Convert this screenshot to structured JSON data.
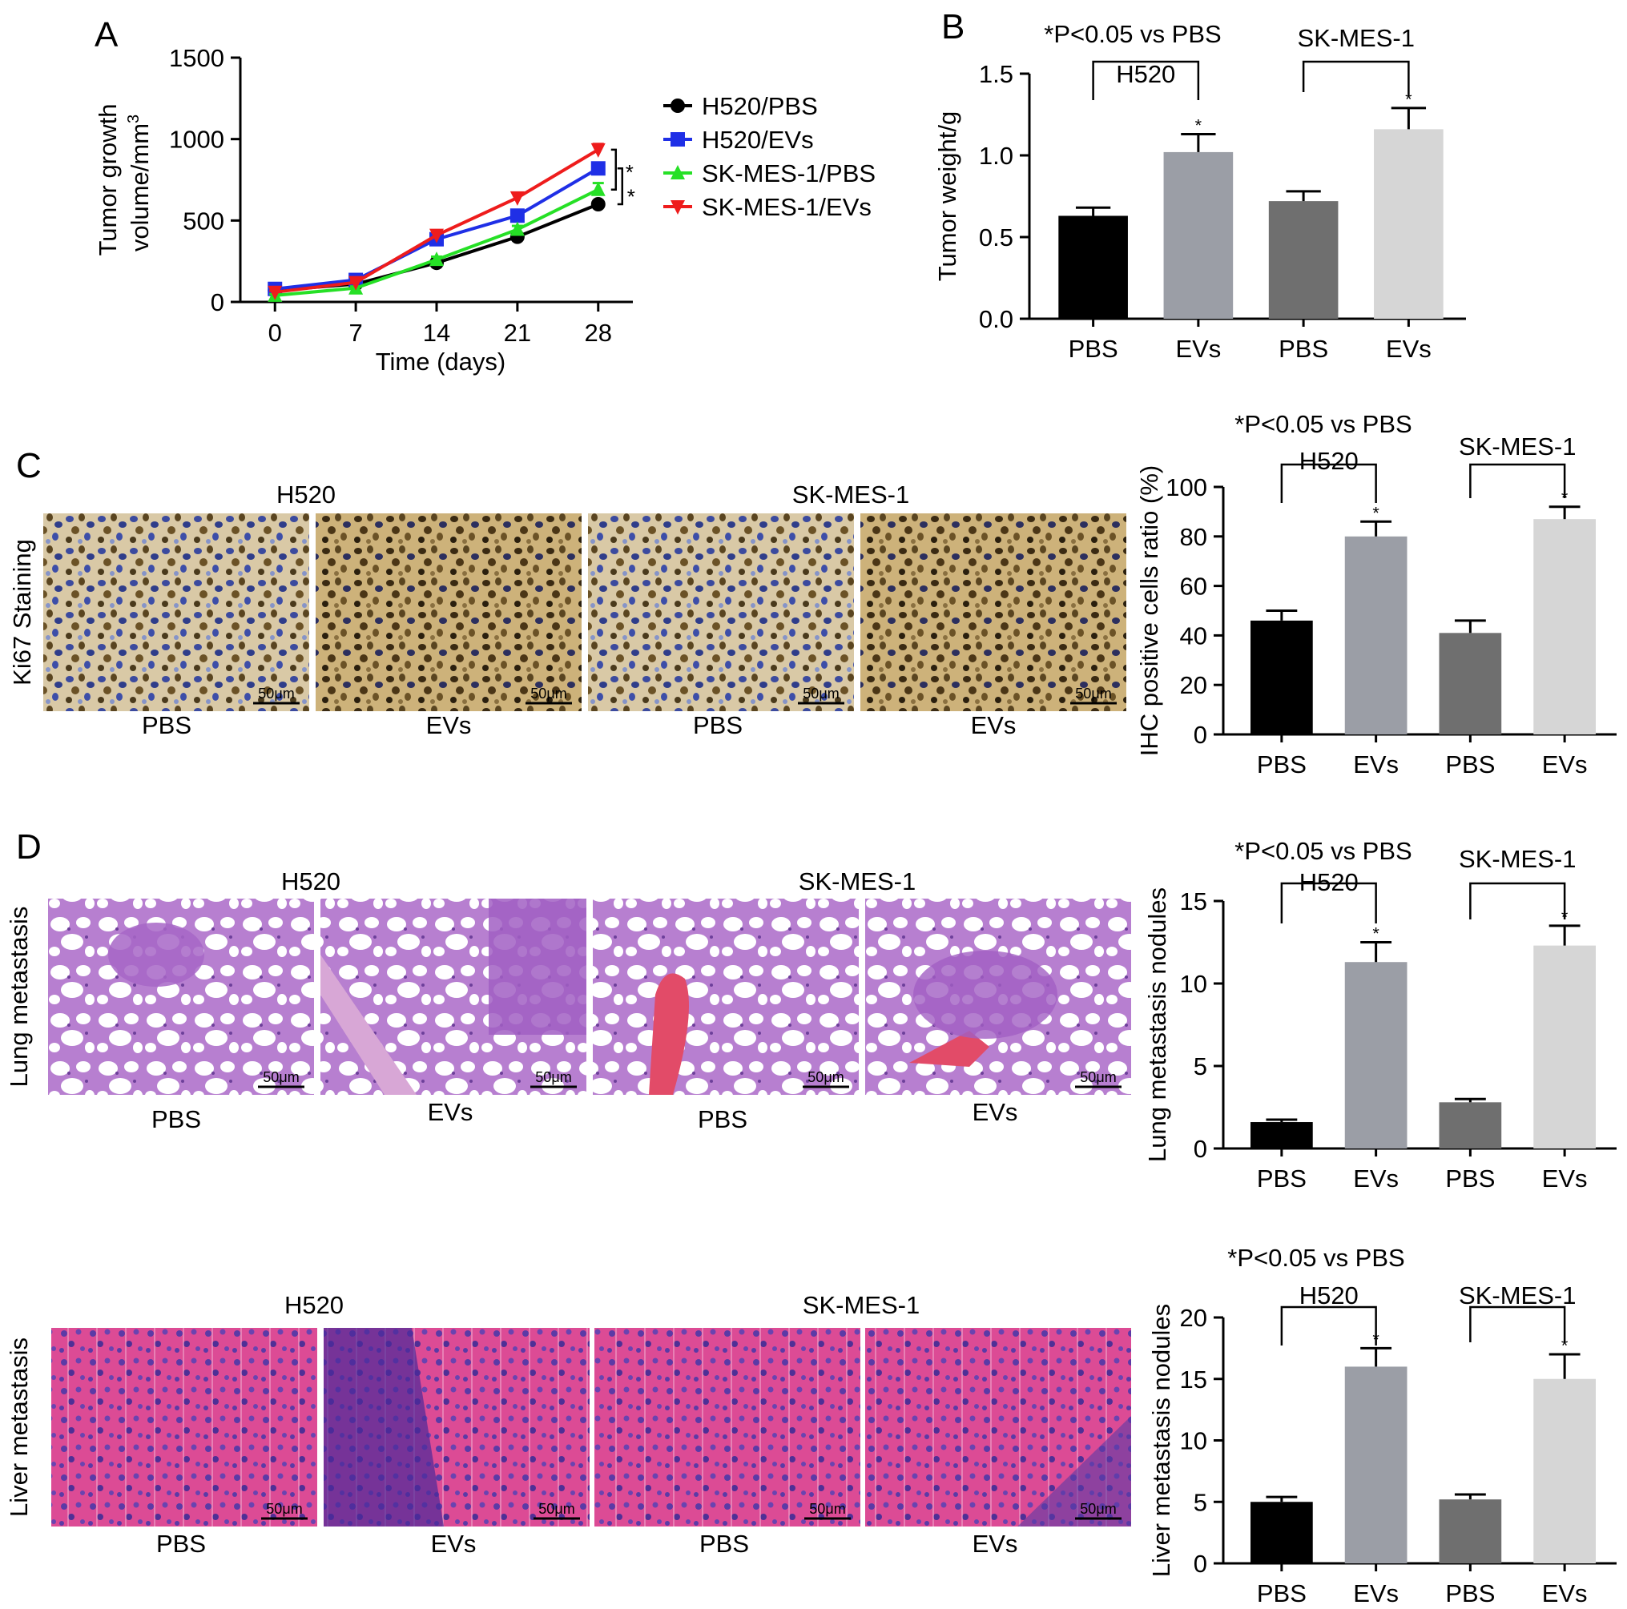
{
  "panels": {
    "A": {
      "letter": "A",
      "chart_data": {
        "type": "line",
        "xlabel": "Time (days)",
        "ylabel_line1": "Tumor growth",
        "ylabel_line2": "volume/mm",
        "ylabel_sup": "3",
        "x": [
          0,
          7,
          14,
          21,
          28
        ],
        "xlim": [
          -3,
          31
        ],
        "ylim": [
          0,
          1500
        ],
        "yticks": [
          0,
          500,
          1000,
          1500
        ],
        "series": [
          {
            "name": "H520/PBS",
            "color": "#000000",
            "marker": "circle",
            "values": [
              70,
              110,
              240,
              400,
              600
            ],
            "err": [
              8,
              10,
              15,
              18,
              20
            ]
          },
          {
            "name": "H520/EVs",
            "color": "#1f2fe6",
            "marker": "square",
            "values": [
              80,
              135,
              385,
              530,
              820
            ],
            "err": [
              8,
              12,
              20,
              25,
              28
            ]
          },
          {
            "name": "SK-MES-1/PBS",
            "color": "#26e026",
            "marker": "triangle-up",
            "values": [
              40,
              85,
              260,
              445,
              690
            ],
            "err": [
              8,
              10,
              18,
              22,
              40
            ]
          },
          {
            "name": "SK-MES-1/EVs",
            "color": "#ee1c1c",
            "marker": "triangle-down",
            "values": [
              60,
              120,
              410,
              640,
              935
            ],
            "err": [
              8,
              12,
              20,
              28,
              35
            ]
          }
        ],
        "sig_marks": [
          "*",
          "*"
        ]
      }
    },
    "B": {
      "letter": "B",
      "chart_data": {
        "type": "bar",
        "pnote": "*P<0.05 vs PBS",
        "ylabel": "Tumor weight/g",
        "categories": [
          "PBS",
          "EVs",
          "PBS",
          "EVs"
        ],
        "values": [
          0.63,
          1.02,
          0.72,
          1.16
        ],
        "err": [
          0.05,
          0.11,
          0.06,
          0.13
        ],
        "colors": [
          "#000000",
          "#9b9ea6",
          "#6f6f6f",
          "#d6d6d6"
        ],
        "ylim": [
          0,
          1.5
        ],
        "yticks": [
          "0.0",
          "0.5",
          "1.0",
          "1.5"
        ],
        "groups": [
          "H520",
          "SK-MES-1"
        ],
        "star": "*"
      }
    },
    "C": {
      "letter": "C",
      "row_label": "Ki67 Staining",
      "groups": [
        "H520",
        "SK-MES-1"
      ],
      "image_labels": [
        "PBS",
        "EVs",
        "PBS",
        "EVs"
      ],
      "scale_bar": "50μm",
      "chart_data": {
        "type": "bar",
        "pnote": "*P<0.05 vs PBS",
        "ylabel": "IHC positive cells ratio (%)",
        "categories": [
          "PBS",
          "EVs",
          "PBS",
          "EVs"
        ],
        "values": [
          46,
          80,
          41,
          87
        ],
        "err": [
          4,
          6,
          5,
          5
        ],
        "colors": [
          "#000000",
          "#9b9ea6",
          "#6f6f6f",
          "#d6d6d6"
        ],
        "ylim": [
          0,
          100
        ],
        "yticks": [
          "0",
          "20",
          "40",
          "60",
          "80",
          "100"
        ],
        "groups": [
          "H520",
          "SK-MES-1"
        ],
        "star": "*"
      }
    },
    "D": {
      "letter": "D",
      "lung": {
        "row_label": "Lung metastasis",
        "groups": [
          "H520",
          "SK-MES-1"
        ],
        "image_labels": [
          "PBS",
          "EVs",
          "PBS",
          "EVs"
        ],
        "scale_bar": "50μm",
        "chart_data": {
          "type": "bar",
          "pnote": "*P<0.05 vs PBS",
          "ylabel": "Lung metastasis nodules",
          "categories": [
            "PBS",
            "EVs",
            "PBS",
            "EVs"
          ],
          "values": [
            1.6,
            11.3,
            2.8,
            12.3
          ],
          "err": [
            0.15,
            1.2,
            0.2,
            1.2
          ],
          "colors": [
            "#000000",
            "#9b9ea6",
            "#6f6f6f",
            "#d6d6d6"
          ],
          "ylim": [
            0,
            15
          ],
          "yticks": [
            "0",
            "5",
            "10",
            "15"
          ],
          "groups": [
            "H520",
            "SK-MES-1"
          ],
          "star": "*"
        }
      },
      "liver": {
        "row_label": "Liver metastasis",
        "groups": [
          "H520",
          "SK-MES-1"
        ],
        "image_labels": [
          "PBS",
          "EVs",
          "PBS",
          "EVs"
        ],
        "scale_bar": "50μm",
        "chart_data": {
          "type": "bar",
          "pnote": "*P<0.05 vs PBS",
          "ylabel": "Liver metastasis nodules",
          "categories": [
            "PBS",
            "EVs",
            "PBS",
            "EVs"
          ],
          "values": [
            5.0,
            16.0,
            5.2,
            15.0
          ],
          "err": [
            0.4,
            1.5,
            0.4,
            2.0
          ],
          "colors": [
            "#000000",
            "#9b9ea6",
            "#6f6f6f",
            "#d6d6d6"
          ],
          "ylim": [
            0,
            20
          ],
          "yticks": [
            "0",
            "5",
            "10",
            "15",
            "20"
          ],
          "groups": [
            "H520",
            "SK-MES-1"
          ],
          "star": "*"
        }
      }
    }
  },
  "palettes": {
    "ki67": [
      "#3f4fa0",
      "#8a6a2a",
      "#e8dcc4"
    ],
    "lung": [
      "#ffffff",
      "#c08cd6",
      "#e14a6e"
    ],
    "liver": [
      "#d8358a",
      "#4a2a9a",
      "#f3d0e2"
    ]
  }
}
